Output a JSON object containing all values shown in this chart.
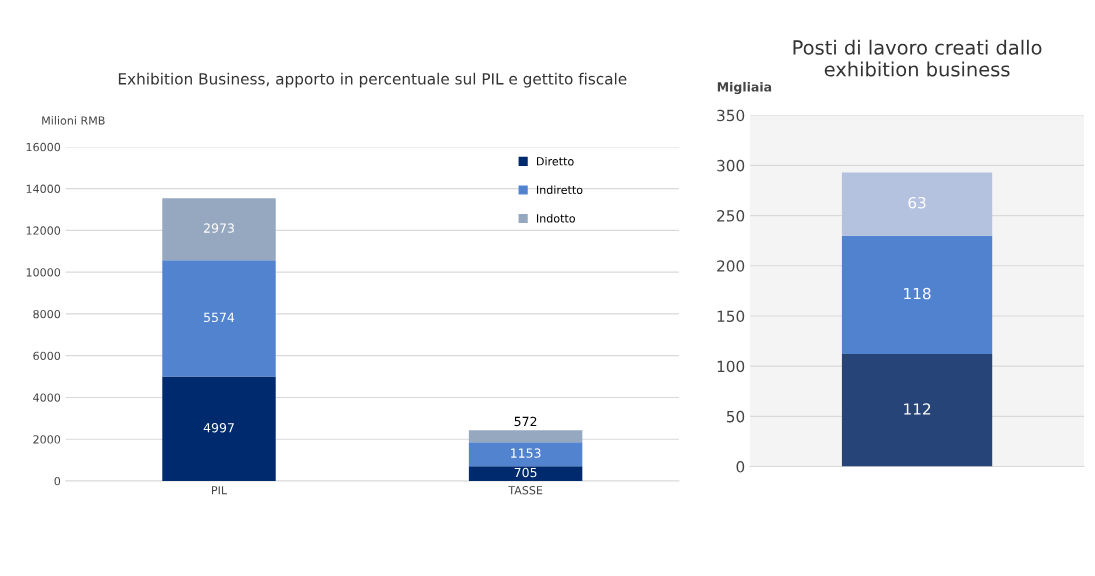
{
  "chart_data": [
    {
      "type": "bar",
      "title": "Exhibition Business, apporto in percentuale sul PIL e gettito fiscale",
      "ylabel": "Milioni RMB",
      "categories": [
        "PIL",
        "TASSE"
      ],
      "stacked": true,
      "ylim": [
        0,
        16000
      ],
      "yticks": [
        0,
        2000,
        4000,
        6000,
        8000,
        10000,
        12000,
        14000,
        16000
      ],
      "grid": "y",
      "legend": "top right",
      "data_labels": true,
      "series": [
        {
          "name": "Diretto",
          "color": "#002a6e",
          "values": [
            4997,
            705
          ]
        },
        {
          "name": "Indiretto",
          "color": "#5183cf",
          "values": [
            5574,
            1153
          ]
        },
        {
          "name": "Indotto",
          "color": "#95a8bf",
          "values": [
            2973,
            572
          ]
        }
      ]
    },
    {
      "type": "bar",
      "title": "Posti di lavoro creati dallo\nexhibition business",
      "ylabel": "Migliaia",
      "categories": [
        null
      ],
      "stacked": true,
      "ylim": [
        0,
        350
      ],
      "yticks": [
        0,
        50,
        100,
        150,
        200,
        250,
        300,
        350
      ],
      "grid": "y",
      "data_labels": true,
      "series": [
        {
          "color": "#264478",
          "values": [
            112
          ]
        },
        {
          "color": "#5182d0",
          "values": [
            118
          ]
        },
        {
          "color": "#b4c2df",
          "values": [
            63
          ]
        }
      ]
    }
  ]
}
